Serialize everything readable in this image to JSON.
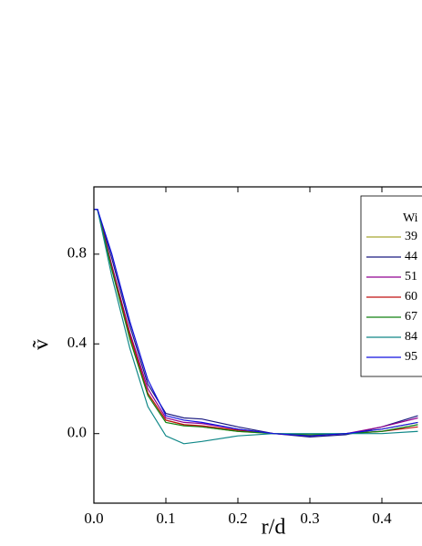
{
  "chart_data": {
    "type": "line",
    "x_label": "r/d",
    "y_label": "ṽ",
    "legend_title": "Wi",
    "x": [
      0,
      0.005,
      0.025,
      0.05,
      0.075,
      0.1,
      0.125,
      0.15,
      0.2,
      0.25,
      0.3,
      0.35,
      0.4,
      0.45
    ],
    "series": [
      {
        "name": "39",
        "color": "#a8a830",
        "values": [
          1.0,
          1.0,
          0.74,
          0.43,
          0.18,
          0.06,
          0.04,
          0.03,
          0.01,
          0.0,
          -0.005,
          0.0,
          0.02,
          0.05
        ]
      },
      {
        "name": "44",
        "color": "#1a1a80",
        "values": [
          1.0,
          1.0,
          0.78,
          0.48,
          0.22,
          0.09,
          0.07,
          0.065,
          0.03,
          0.0,
          -0.015,
          -0.005,
          0.03,
          0.08
        ]
      },
      {
        "name": "51",
        "color": "#900090",
        "values": [
          1.0,
          1.0,
          0.75,
          0.45,
          0.2,
          0.07,
          0.05,
          0.045,
          0.02,
          0.0,
          -0.01,
          0.0,
          0.03,
          0.07
        ]
      },
      {
        "name": "60",
        "color": "#c01010",
        "values": [
          1.0,
          1.0,
          0.74,
          0.44,
          0.18,
          0.06,
          0.04,
          0.035,
          0.015,
          0.0,
          -0.01,
          0.0,
          0.01,
          0.03
        ]
      },
      {
        "name": "67",
        "color": "#108010",
        "values": [
          1.0,
          1.0,
          0.73,
          0.42,
          0.17,
          0.05,
          0.035,
          0.03,
          0.01,
          0.0,
          -0.005,
          0.0,
          0.01,
          0.04
        ]
      },
      {
        "name": "84",
        "color": "#108888",
        "values": [
          1.0,
          1.0,
          0.7,
          0.38,
          0.12,
          -0.01,
          -0.045,
          -0.035,
          -0.01,
          0.0,
          0.0,
          0.0,
          0.0,
          0.01
        ]
      },
      {
        "name": "95",
        "color": "#1010e0",
        "values": [
          1.0,
          1.0,
          0.8,
          0.5,
          0.24,
          0.08,
          0.06,
          0.05,
          0.02,
          0.0,
          -0.01,
          0.0,
          0.02,
          0.05
        ]
      }
    ],
    "xlim": [
      0,
      0.4557
    ],
    "ylim": [
      -0.31,
      1.1
    ],
    "xticks": [
      {
        "value": 0,
        "label": "0.0"
      },
      0.1,
      0.2,
      0.3,
      0.4
    ],
    "yticks": [
      {
        "value": 0,
        "label": "0.0"
      },
      0.4,
      0.8
    ]
  }
}
